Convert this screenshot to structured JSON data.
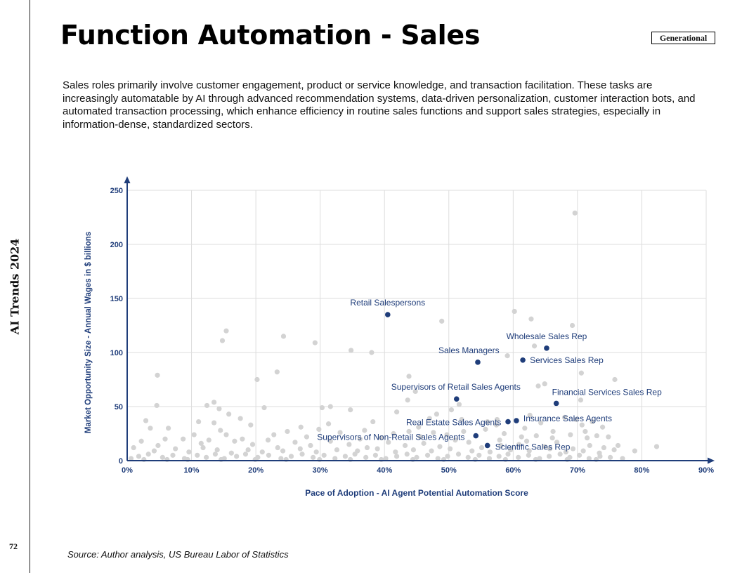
{
  "side_label": "AI Trends 2024",
  "page_number": "72",
  "title": "Function Automation - Sales",
  "badge": "Generational",
  "intro": "Sales roles primarily involve customer engagement, product or service knowledge, and transaction facilitation. These tasks are increasingly automatable by AI through advanced recommendation systems, data-driven personalization, customer interaction bots, and automated transaction processing, which enhance efficiency in routine sales functions and support sales strategies, especially in information-dense, standardized sectors.",
  "source": "Source: Author analysis, US Bureau Labor of Statistics",
  "colors": {
    "highlight": "#1f3d7a",
    "background_point": "#d3d3d3",
    "axis": "#1f3d7a",
    "grid": "#dddddd"
  },
  "chart_data": {
    "type": "scatter",
    "xlabel": "Pace of Adoption - AI Agent Potential Automation Score",
    "ylabel": "Market Opportunity Size - Annual Wages in $ billions",
    "xlim": [
      0,
      90
    ],
    "ylim": [
      0,
      250
    ],
    "x_ticks": [
      "0%",
      "10%",
      "20%",
      "30%",
      "40%",
      "50%",
      "60%",
      "70%",
      "80%",
      "90%"
    ],
    "y_ticks": [
      "0",
      "50",
      "100",
      "150",
      "200",
      "250"
    ],
    "grid": true,
    "highlighted": [
      {
        "label": "Retail Salespersons",
        "x": 40.5,
        "y": 135
      },
      {
        "label": "Wholesale Sales Rep",
        "x": 65.2,
        "y": 104
      },
      {
        "label": "Sales Managers",
        "x": 54.5,
        "y": 91
      },
      {
        "label": "Services Sales Rep",
        "x": 61.5,
        "y": 93
      },
      {
        "label": "Supervisors of Retail Sales Agents",
        "x": 51.2,
        "y": 57
      },
      {
        "label": "Financial Services Sales Rep",
        "x": 66.7,
        "y": 53
      },
      {
        "label": "Real Estate Sales Agents",
        "x": 59.2,
        "y": 36
      },
      {
        "label": "Insurance Sales Agents",
        "x": 60.5,
        "y": 37
      },
      {
        "label": "Supervisors of Non-Retail Sales Agents",
        "x": 54.2,
        "y": 23
      },
      {
        "label": "Scientific Sales Rep",
        "x": 56.0,
        "y": 14
      }
    ],
    "background": [
      [
        69.6,
        229
      ],
      [
        60.2,
        138
      ],
      [
        62.8,
        131
      ],
      [
        48.9,
        129
      ],
      [
        69.2,
        125
      ],
      [
        15.4,
        120
      ],
      [
        24.3,
        115
      ],
      [
        14.8,
        111
      ],
      [
        29.2,
        109
      ],
      [
        34.8,
        102
      ],
      [
        38.0,
        100
      ],
      [
        59.1,
        97
      ],
      [
        63.3,
        106
      ],
      [
        70.6,
        81
      ],
      [
        4.7,
        79
      ],
      [
        43.8,
        78
      ],
      [
        75.8,
        75
      ],
      [
        20.2,
        75
      ],
      [
        23.3,
        82
      ],
      [
        64.9,
        71
      ],
      [
        63.9,
        69
      ],
      [
        70.5,
        56
      ],
      [
        4.6,
        51
      ],
      [
        12.4,
        51
      ],
      [
        13.5,
        54
      ],
      [
        30.3,
        49
      ],
      [
        31.6,
        50
      ],
      [
        34.7,
        47
      ],
      [
        21.3,
        49
      ],
      [
        44.8,
        64
      ],
      [
        43.6,
        56
      ],
      [
        50.4,
        47
      ],
      [
        51.6,
        52
      ],
      [
        41.9,
        45
      ],
      [
        14.3,
        48
      ],
      [
        15.8,
        43
      ],
      [
        17.6,
        39
      ],
      [
        2.9,
        37
      ],
      [
        11.1,
        36
      ],
      [
        13.5,
        35
      ],
      [
        19.2,
        33
      ],
      [
        31.3,
        34
      ],
      [
        38.2,
        36
      ],
      [
        47.0,
        39
      ],
      [
        48.1,
        43
      ],
      [
        52.0,
        38
      ],
      [
        56.0,
        36
      ],
      [
        57.5,
        38
      ],
      [
        62.6,
        42
      ],
      [
        64.3,
        35
      ],
      [
        68.0,
        40
      ],
      [
        69.8,
        38
      ],
      [
        70.7,
        33
      ],
      [
        72.3,
        36
      ],
      [
        73.9,
        31
      ],
      [
        3.6,
        30
      ],
      [
        6.4,
        30
      ],
      [
        14.5,
        28
      ],
      [
        15.4,
        24
      ],
      [
        17.9,
        20
      ],
      [
        21.9,
        19
      ],
      [
        24.9,
        27
      ],
      [
        27.9,
        22
      ],
      [
        29.8,
        29
      ],
      [
        33.1,
        26
      ],
      [
        36.9,
        28
      ],
      [
        39.5,
        21
      ],
      [
        41.4,
        25
      ],
      [
        43.8,
        27
      ],
      [
        45.6,
        22
      ],
      [
        47.6,
        26
      ],
      [
        49.7,
        24
      ],
      [
        52.3,
        27
      ],
      [
        55.7,
        29
      ],
      [
        57.4,
        33
      ],
      [
        58.6,
        25
      ],
      [
        61.3,
        22
      ],
      [
        63.6,
        23
      ],
      [
        66.2,
        27
      ],
      [
        68.9,
        24
      ],
      [
        71.5,
        21
      ],
      [
        73.0,
        23
      ],
      [
        74.8,
        22
      ],
      [
        76.3,
        14
      ],
      [
        78.9,
        9
      ],
      [
        82.3,
        13
      ],
      [
        2.2,
        18
      ],
      [
        5.9,
        20
      ],
      [
        8.7,
        20
      ],
      [
        10.4,
        24
      ],
      [
        12.7,
        19
      ],
      [
        16.7,
        18
      ],
      [
        19.5,
        15
      ],
      [
        23.4,
        12
      ],
      [
        26.1,
        17
      ],
      [
        28.5,
        14
      ],
      [
        31.6,
        18
      ],
      [
        34.5,
        15
      ],
      [
        37.3,
        12
      ],
      [
        40.6,
        17
      ],
      [
        43.2,
        14
      ],
      [
        46.1,
        16
      ],
      [
        48.6,
        13
      ],
      [
        51.0,
        19
      ],
      [
        53.1,
        17
      ],
      [
        55.1,
        12
      ],
      [
        57.9,
        19
      ],
      [
        60.9,
        15
      ],
      [
        62.1,
        18
      ],
      [
        64.9,
        13
      ],
      [
        66.8,
        17
      ],
      [
        69.3,
        11
      ],
      [
        71.9,
        14
      ],
      [
        74.1,
        12
      ],
      [
        75.7,
        10
      ],
      [
        1.0,
        12
      ],
      [
        4.2,
        9
      ],
      [
        7.5,
        11
      ],
      [
        9.6,
        8
      ],
      [
        11.8,
        12
      ],
      [
        14.0,
        10
      ],
      [
        16.2,
        7
      ],
      [
        18.8,
        10
      ],
      [
        21.0,
        8
      ],
      [
        24.2,
        9
      ],
      [
        26.9,
        11
      ],
      [
        29.4,
        8
      ],
      [
        32.6,
        10
      ],
      [
        35.8,
        9
      ],
      [
        38.9,
        11
      ],
      [
        41.7,
        8
      ],
      [
        44.5,
        10
      ],
      [
        47.3,
        9
      ],
      [
        50.2,
        11
      ],
      [
        53.6,
        9
      ],
      [
        56.4,
        8
      ],
      [
        59.6,
        10
      ],
      [
        62.5,
        9
      ],
      [
        65.7,
        11
      ],
      [
        68.2,
        8
      ],
      [
        70.9,
        9
      ],
      [
        73.4,
        7
      ],
      [
        1.8,
        4
      ],
      [
        3.3,
        6
      ],
      [
        5.5,
        3
      ],
      [
        7.1,
        5
      ],
      [
        8.9,
        2
      ],
      [
        10.9,
        5
      ],
      [
        12.3,
        3
      ],
      [
        13.7,
        6
      ],
      [
        15.1,
        2
      ],
      [
        17.0,
        4
      ],
      [
        18.4,
        6
      ],
      [
        20.3,
        3
      ],
      [
        22.0,
        5
      ],
      [
        23.9,
        2
      ],
      [
        25.5,
        4
      ],
      [
        27.2,
        6
      ],
      [
        28.9,
        3
      ],
      [
        30.6,
        5
      ],
      [
        32.3,
        2
      ],
      [
        33.9,
        4
      ],
      [
        35.4,
        6
      ],
      [
        37.1,
        3
      ],
      [
        38.6,
        5
      ],
      [
        40.2,
        2
      ],
      [
        41.9,
        4
      ],
      [
        43.5,
        6
      ],
      [
        45.0,
        3
      ],
      [
        46.7,
        5
      ],
      [
        48.3,
        2
      ],
      [
        49.8,
        4
      ],
      [
        51.5,
        6
      ],
      [
        53.0,
        3
      ],
      [
        54.7,
        5
      ],
      [
        56.3,
        2
      ],
      [
        57.8,
        4
      ],
      [
        59.2,
        6
      ],
      [
        60.8,
        3
      ],
      [
        62.4,
        5
      ],
      [
        64.1,
        2
      ],
      [
        65.6,
        4
      ],
      [
        67.3,
        6
      ],
      [
        68.8,
        3
      ],
      [
        70.3,
        5
      ],
      [
        71.8,
        2
      ],
      [
        73.5,
        4
      ],
      [
        75.1,
        3
      ],
      [
        77.0,
        2
      ],
      [
        0.6,
        2
      ],
      [
        2.6,
        1
      ],
      [
        6.2,
        1
      ],
      [
        9.4,
        1
      ],
      [
        14.6,
        1
      ],
      [
        19.9,
        1
      ],
      [
        24.7,
        1
      ],
      [
        29.9,
        1
      ],
      [
        34.7,
        1
      ],
      [
        39.5,
        1
      ],
      [
        44.4,
        1
      ],
      [
        49.2,
        1
      ],
      [
        54.1,
        1
      ],
      [
        58.8,
        1
      ],
      [
        63.5,
        1
      ],
      [
        68.4,
        1
      ],
      [
        72.9,
        1
      ],
      [
        4.8,
        14
      ],
      [
        22.8,
        24
      ],
      [
        36.2,
        20
      ],
      [
        58.1,
        14
      ],
      [
        66.1,
        21
      ],
      [
        71.2,
        27
      ],
      [
        45.3,
        31
      ],
      [
        11.5,
        16
      ],
      [
        27.0,
        31
      ],
      [
        61.8,
        30
      ]
    ],
    "labels_placement": "above-left"
  }
}
